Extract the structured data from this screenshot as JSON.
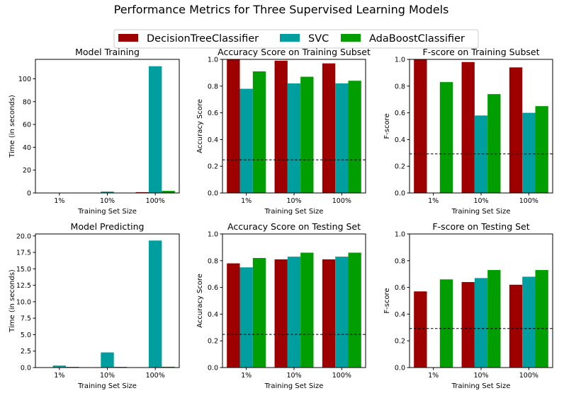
{
  "figure": {
    "title": "Performance Metrics for Three Supervised Learning Models"
  },
  "legend": {
    "placement": "top-center",
    "entries": [
      {
        "name": "DecisionTreeClassifier",
        "color": "#9e0000"
      },
      {
        "name": "SVC",
        "color": "#009e9e"
      },
      {
        "name": "AdaBoostClassifier",
        "color": "#009e00"
      }
    ]
  },
  "chart_data": [
    {
      "type": "bar",
      "title": "Model Training",
      "xlabel": "Training Set Size",
      "ylabel": "Time (in seconds)",
      "categories": [
        "1%",
        "10%",
        "100%"
      ],
      "ylim": [
        0,
        117
      ],
      "yticks": [
        0,
        20,
        40,
        60,
        80,
        100
      ],
      "ytick_labels": [
        "0",
        "20",
        "40",
        "60",
        "80",
        "100"
      ],
      "grid": false,
      "series": [
        {
          "name": "DecisionTreeClassifier",
          "values": [
            0.01,
            0.05,
            0.7
          ]
        },
        {
          "name": "SVC",
          "values": [
            0.02,
            1.2,
            111
          ]
        },
        {
          "name": "AdaBoostClassifier",
          "values": [
            0.1,
            0.2,
            1.8
          ]
        }
      ]
    },
    {
      "type": "bar",
      "title": "Accuracy Score on Training Subset",
      "xlabel": "Training Set Size",
      "ylabel": "Accuracy Score",
      "categories": [
        "1%",
        "10%",
        "100%"
      ],
      "ylim": [
        0,
        1
      ],
      "yticks": [
        0,
        0.2,
        0.4,
        0.6,
        0.8,
        1.0
      ],
      "ytick_labels": [
        "0.0",
        "0.2",
        "0.4",
        "0.6",
        "0.8",
        "1.0"
      ],
      "grid": false,
      "baseline": 0.248,
      "series": [
        {
          "name": "DecisionTreeClassifier",
          "values": [
            1.0,
            0.99,
            0.97
          ]
        },
        {
          "name": "SVC",
          "values": [
            0.78,
            0.82,
            0.82
          ]
        },
        {
          "name": "AdaBoostClassifier",
          "values": [
            0.91,
            0.87,
            0.84
          ]
        }
      ]
    },
    {
      "type": "bar",
      "title": "F-score on Training Subset",
      "xlabel": "Training Set Size",
      "ylabel": "F-score",
      "categories": [
        "1%",
        "10%",
        "100%"
      ],
      "ylim": [
        0,
        1
      ],
      "yticks": [
        0,
        0.2,
        0.4,
        0.6,
        0.8,
        1.0
      ],
      "ytick_labels": [
        "0.0",
        "0.2",
        "0.4",
        "0.6",
        "0.8",
        "1.0"
      ],
      "grid": false,
      "baseline": 0.292,
      "series": [
        {
          "name": "DecisionTreeClassifier",
          "values": [
            1.0,
            0.98,
            0.94
          ]
        },
        {
          "name": "SVC",
          "values": [
            0.0,
            0.58,
            0.6
          ]
        },
        {
          "name": "AdaBoostClassifier",
          "values": [
            0.83,
            0.74,
            0.65
          ]
        }
      ]
    },
    {
      "type": "bar",
      "title": "Model Predicting",
      "xlabel": "Training Set Size",
      "ylabel": "Time (in seconds)",
      "categories": [
        "1%",
        "10%",
        "100%"
      ],
      "ylim": [
        0,
        20.3
      ],
      "yticks": [
        0,
        2.5,
        5,
        7.5,
        10,
        12.5,
        15,
        17.5,
        20
      ],
      "ytick_labels": [
        "0.0",
        "2.5",
        "5.0",
        "7.5",
        "10.0",
        "12.5",
        "15.0",
        "17.5",
        "20.0"
      ],
      "grid": false,
      "series": [
        {
          "name": "DecisionTreeClassifier",
          "values": [
            0.005,
            0.005,
            0.01
          ]
        },
        {
          "name": "SVC",
          "values": [
            0.3,
            2.3,
            19.3
          ]
        },
        {
          "name": "AdaBoostClassifier",
          "values": [
            0.1,
            0.1,
            0.12
          ]
        }
      ]
    },
    {
      "type": "bar",
      "title": "Accuracy Score on Testing Set",
      "xlabel": "Training Set Size",
      "ylabel": "Accuracy Score",
      "categories": [
        "1%",
        "10%",
        "100%"
      ],
      "ylim": [
        0,
        1
      ],
      "yticks": [
        0,
        0.2,
        0.4,
        0.6,
        0.8,
        1.0
      ],
      "ytick_labels": [
        "0.0",
        "0.2",
        "0.4",
        "0.6",
        "0.8",
        "1.0"
      ],
      "grid": false,
      "baseline": 0.248,
      "series": [
        {
          "name": "DecisionTreeClassifier",
          "values": [
            0.78,
            0.81,
            0.81
          ]
        },
        {
          "name": "SVC",
          "values": [
            0.75,
            0.83,
            0.83
          ]
        },
        {
          "name": "AdaBoostClassifier",
          "values": [
            0.82,
            0.86,
            0.86
          ]
        }
      ]
    },
    {
      "type": "bar",
      "title": "F-score on Testing Set",
      "xlabel": "Training Set Size",
      "ylabel": "F-score",
      "categories": [
        "1%",
        "10%",
        "100%"
      ],
      "ylim": [
        0,
        1
      ],
      "yticks": [
        0,
        0.2,
        0.4,
        0.6,
        0.8,
        1.0
      ],
      "ytick_labels": [
        "0.0",
        "0.2",
        "0.4",
        "0.6",
        "0.8",
        "1.0"
      ],
      "grid": false,
      "baseline": 0.292,
      "series": [
        {
          "name": "DecisionTreeClassifier",
          "values": [
            0.57,
            0.64,
            0.62
          ]
        },
        {
          "name": "SVC",
          "values": [
            0.0,
            0.67,
            0.68
          ]
        },
        {
          "name": "AdaBoostClassifier",
          "values": [
            0.66,
            0.73,
            0.73
          ]
        }
      ]
    }
  ]
}
